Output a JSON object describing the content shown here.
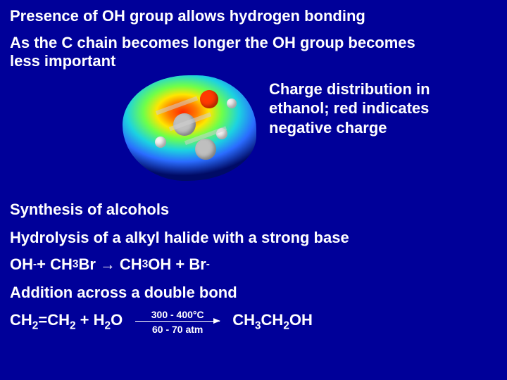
{
  "title": "Presence of OH group allows hydrogen bonding",
  "subtitle": "As the C chain becomes longer the OH group becomes less important",
  "caption": "Charge distribution in ethanol; red indicates negative charge",
  "sectionA": "Synthesis of alcohols",
  "sectionB": "Hydrolysis of a alkyl halide with a strong base",
  "eq1": {
    "lhs1": "OH",
    "lhs1_sup": "-",
    "plus": " + CH",
    "ch3sub": "3",
    "br": "Br ",
    "arrowGlyph": "→",
    "rhs1": " CH",
    "rhs1_sub": "3",
    "oh": "OH + Br",
    "br_sup": "-"
  },
  "sectionC": "Addition across a double bond",
  "eq2": {
    "lhs": "CH",
    "s2a": "2",
    "eq": "=CH",
    "s2b": "2",
    "plus": " + H",
    "s2c": "2",
    "o": "O",
    "condTop": "300 - 400°C",
    "condBot": "60 - 70 atm",
    "rhs": "CH",
    "s3": "3",
    "ch2": "CH",
    "s2d": "2",
    "oh": "OH"
  },
  "colors": {
    "background": "#000099",
    "text": "#ffffff"
  }
}
